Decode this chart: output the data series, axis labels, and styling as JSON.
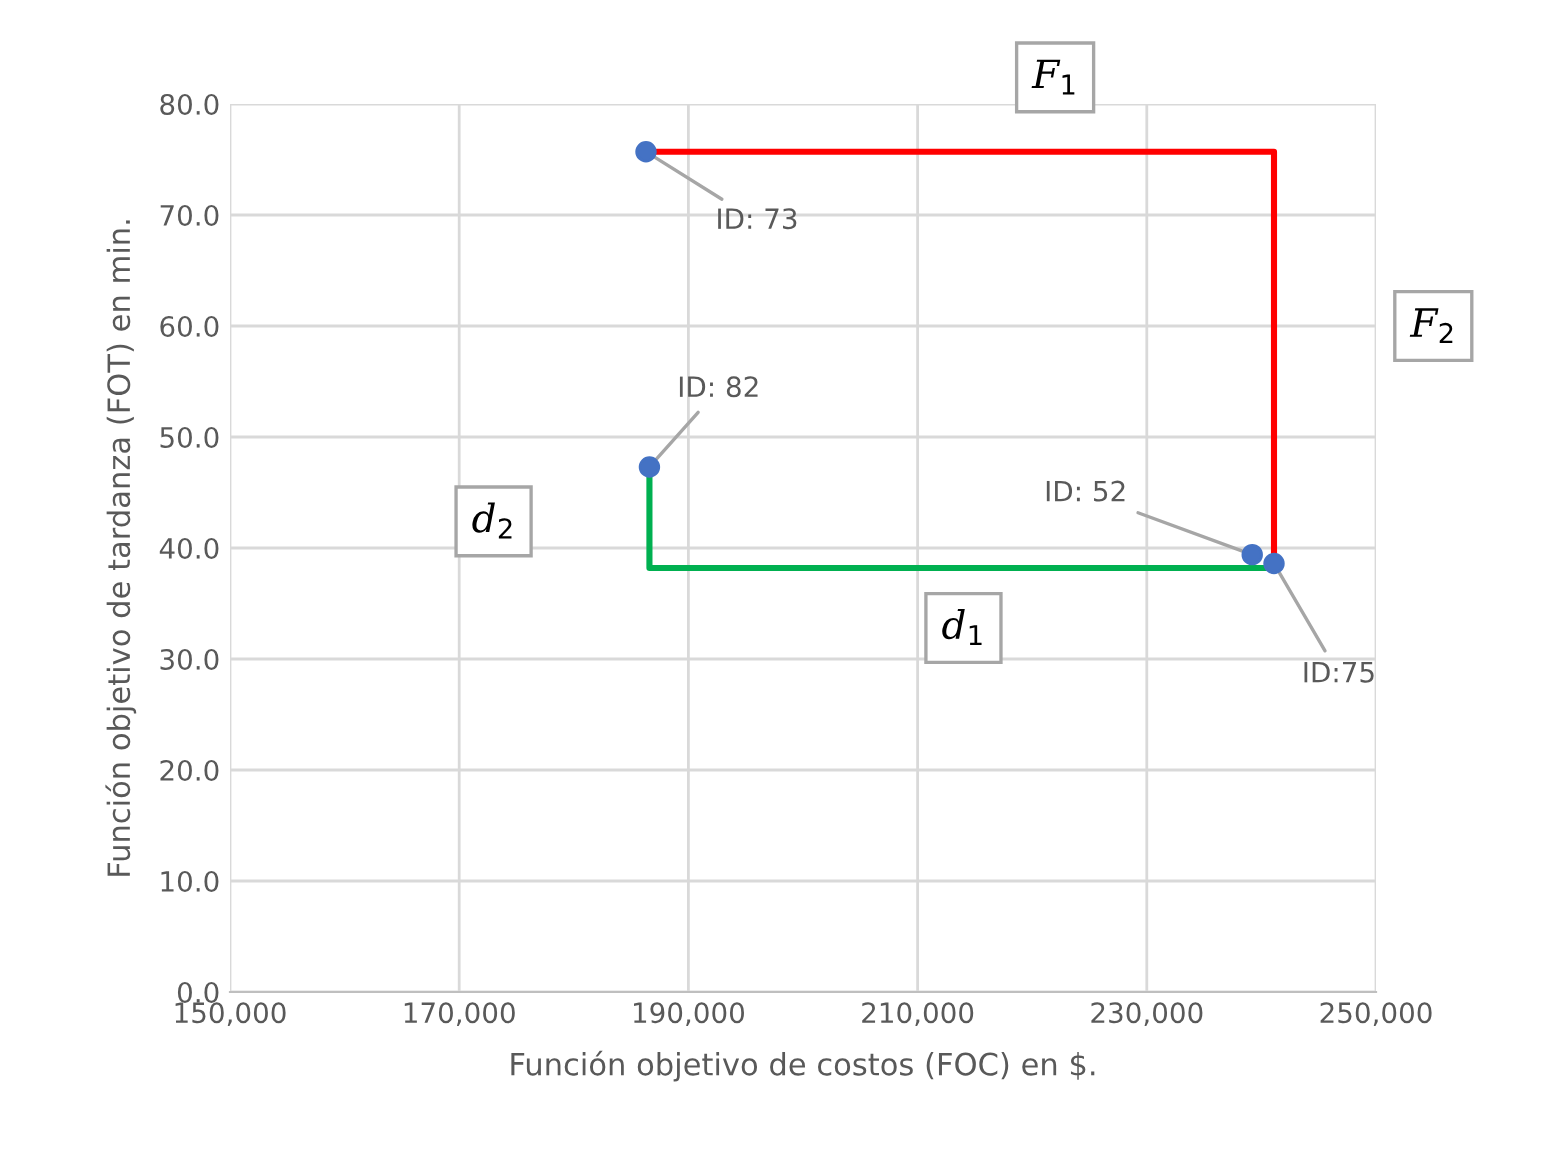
{
  "chart_data": {
    "type": "scatter",
    "xlabel": "Función objetivo de costos (FOC) en $.",
    "ylabel": "Función objetivo de tardanza (FOT) en min.",
    "series": [
      {
        "color": "#4472c4",
        "x": [
          186300,
          186600,
          239200,
          241100
        ],
        "values": [
          75.7,
          47.3,
          39.4,
          38.6
        ],
        "marker": "circle"
      },
      {
        "type": "line",
        "color": "#ff0000",
        "x": [
          186800,
          241100,
          241100
        ],
        "values": [
          75.7,
          75.7,
          38.6
        ],
        "marker": "none"
      },
      {
        "type": "line",
        "color": "#00b050",
        "x": [
          186600,
          186600,
          240500
        ],
        "values": [
          47.3,
          38.2,
          38.2
        ],
        "marker": "none"
      }
    ],
    "annotations": [
      {
        "text": "ID: 73",
        "x": 186300,
        "y": 75.7
      },
      {
        "text": "ID: 82",
        "x": 186600,
        "y": 47.3
      },
      {
        "text": "ID: 52",
        "x": 239200,
        "y": 39.4
      },
      {
        "text": "ID:75",
        "x": 241100,
        "y": 38.6
      },
      "F$_{1}$",
      "F$_{2}$",
      "d$_{2}$",
      "d$_{1}$"
    ],
    "xlim": [
      150000,
      250000
    ],
    "xticks": [
      {
        "value": 150000,
        "label": "150,000"
      },
      {
        "value": 170000,
        "label": "170,000"
      },
      {
        "value": 190000,
        "label": "190,000"
      },
      {
        "value": 210000,
        "label": "210,000"
      },
      {
        "value": 230000,
        "label": "230,000"
      },
      {
        "value": 250000,
        "label": "250,000"
      }
    ],
    "ylim": [
      0,
      80
    ],
    "yticks": [
      {
        "value": 0,
        "label": "0.0"
      },
      {
        "value": 10,
        "label": "10.0"
      },
      {
        "value": 20,
        "label": "20.0"
      },
      {
        "value": 30,
        "label": "30.0"
      },
      {
        "value": 40,
        "label": "40.0"
      },
      {
        "value": 50,
        "label": "50.0"
      },
      {
        "value": 60,
        "label": "60.0"
      },
      {
        "value": 70,
        "label": "70.0"
      },
      {
        "value": 80,
        "label": "80.0"
      }
    ],
    "grid": true
  }
}
